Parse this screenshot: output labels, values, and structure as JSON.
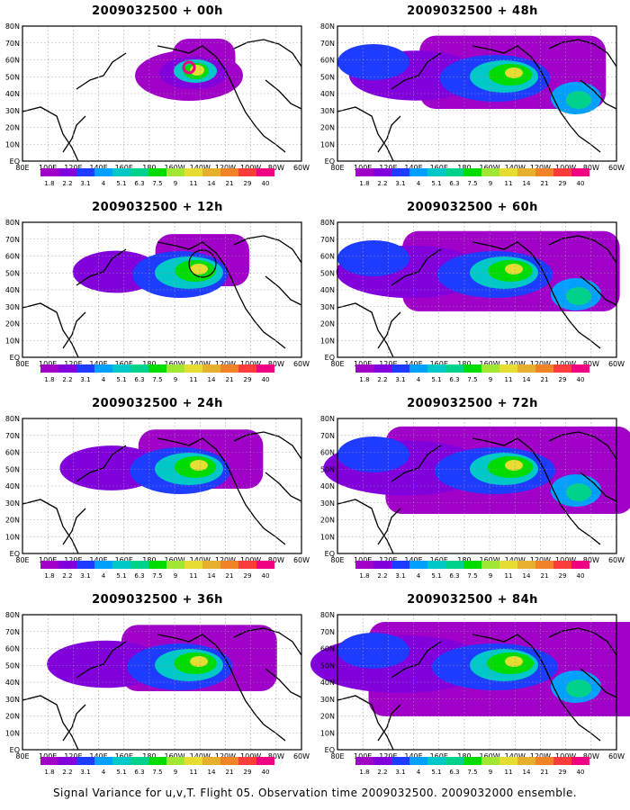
{
  "caption": "Signal Variance for u,v,T. Flight 05. Observation time 2009032500. 2009032000 ensemble.",
  "lat_labels": [
    "80N",
    "70N",
    "60N",
    "50N",
    "40N",
    "30N",
    "20N",
    "10N",
    "EQ"
  ],
  "lon_labels": [
    "80E",
    "100E",
    "120E",
    "140E",
    "160E",
    "180",
    "160W",
    "140W",
    "120W",
    "100W",
    "80W",
    "60W"
  ],
  "colorbar": {
    "levels": [
      "1.8",
      "2.2",
      "3.1",
      "4",
      "5.1",
      "6.3",
      "7.5",
      "9",
      "11",
      "14",
      "21",
      "29",
      "40"
    ],
    "colors": [
      "#a000c8",
      "#8200dc",
      "#1e3cff",
      "#00a0ff",
      "#00c8c8",
      "#00d28c",
      "#00dc00",
      "#a0e632",
      "#e6dc32",
      "#e6af2d",
      "#f08228",
      "#fa3c3c",
      "#f00082"
    ]
  },
  "panels": [
    {
      "title": "2009032500 + 00h",
      "lead_hours": 0
    },
    {
      "title": "2009032500 + 48h",
      "lead_hours": 48
    },
    {
      "title": "2009032500 + 12h",
      "lead_hours": 12
    },
    {
      "title": "2009032500 + 60h",
      "lead_hours": 60
    },
    {
      "title": "2009032500 + 24h",
      "lead_hours": 24
    },
    {
      "title": "2009032500 + 72h",
      "lead_hours": 72
    },
    {
      "title": "2009032500 + 36h",
      "lead_hours": 36
    },
    {
      "title": "2009032500 + 84h",
      "lead_hours": 84
    }
  ]
}
